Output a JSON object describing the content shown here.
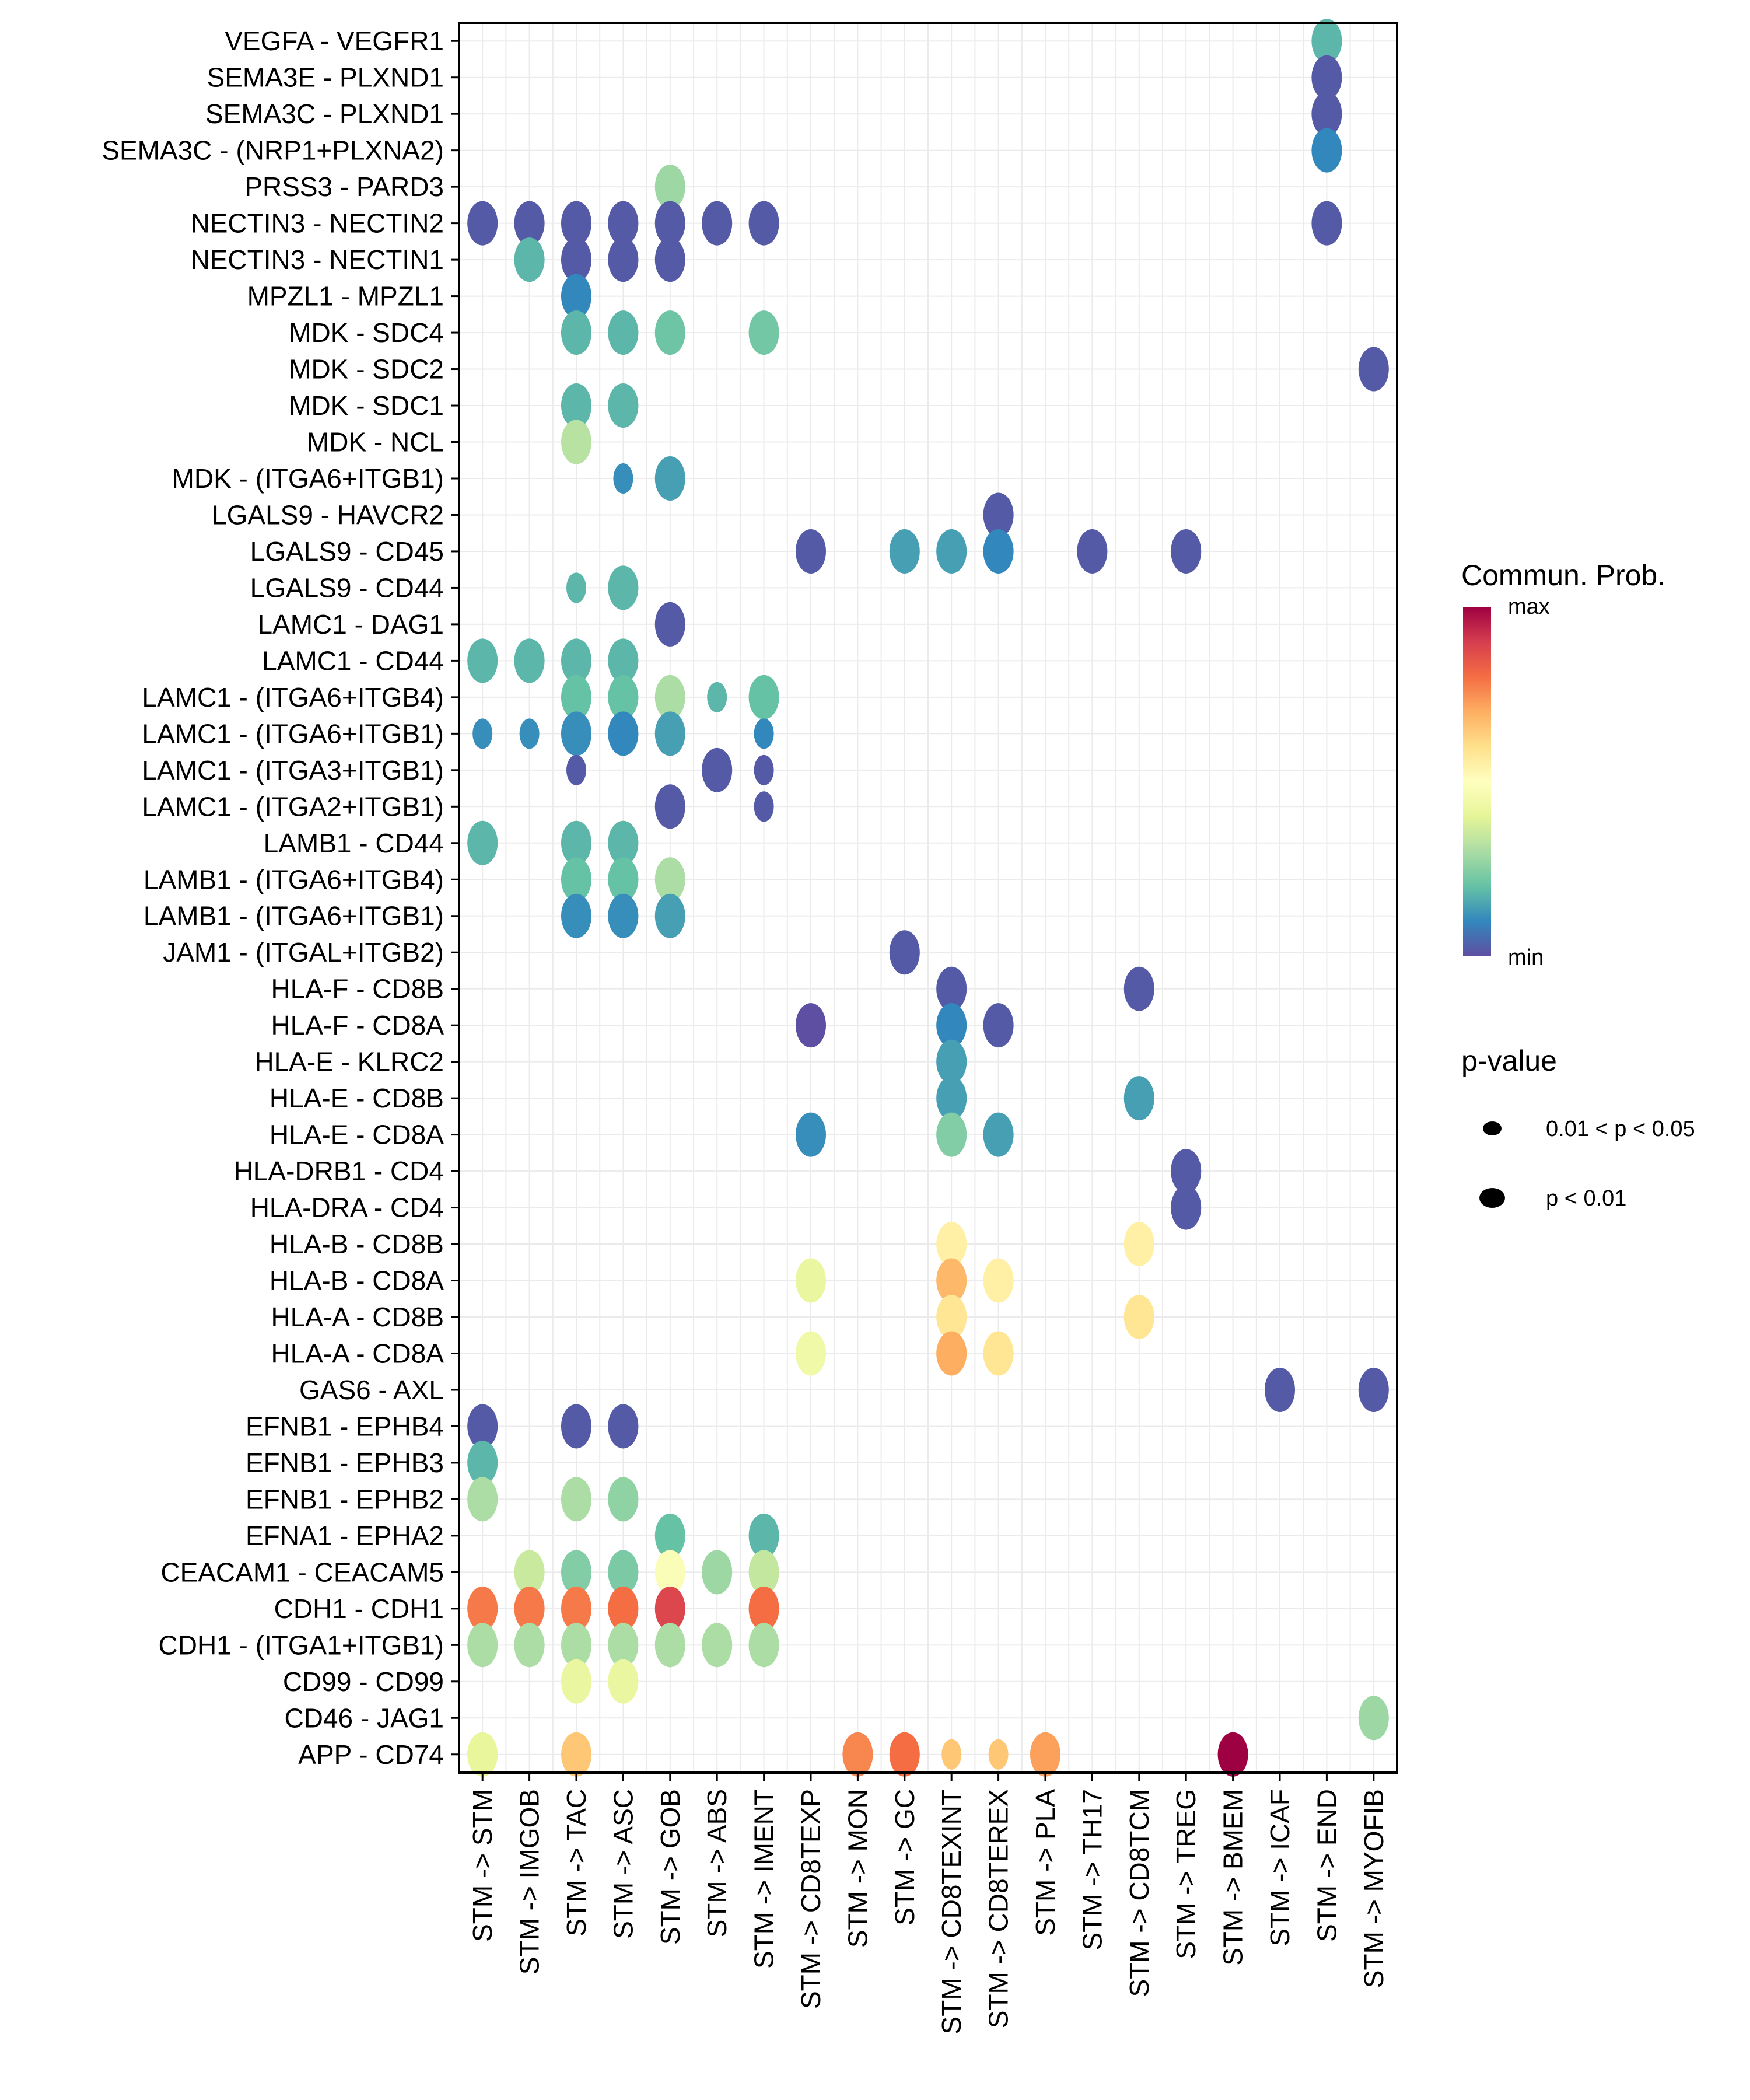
{
  "chart_data": {
    "type": "scatter",
    "subtype": "dot-plot",
    "title": "",
    "xlabel": "",
    "ylabel": "",
    "grid": true,
    "legend_position": "right",
    "x_categories": [
      "STM -> STM",
      "STM -> IMGOB",
      "STM -> TAC",
      "STM -> ASC",
      "STM -> GOB",
      "STM -> ABS",
      "STM -> IMENT",
      "STM -> CD8TEXP",
      "STM -> MON",
      "STM -> GC",
      "STM -> CD8TEXINT",
      "STM -> CD8TEREX",
      "STM -> PLA",
      "STM -> TH17",
      "STM -> CD8TCM",
      "STM -> TREG",
      "STM -> BMEM",
      "STM -> ICAF",
      "STM -> END",
      "STM -> MYOFIB"
    ],
    "y_categories_top_to_bottom": [
      "VEGFA - VEGFR1",
      "SEMA3E - PLXND1",
      "SEMA3C - PLXND1",
      "SEMA3C - (NRP1+PLXNA2)",
      "PRSS3 - PARD3",
      "NECTIN3 - NECTIN2",
      "NECTIN3 - NECTIN1",
      "MPZL1 - MPZL1",
      "MDK - SDC4",
      "MDK - SDC2",
      "MDK - SDC1",
      "MDK - NCL",
      "MDK - (ITGA6+ITGB1)",
      "LGALS9 - HAVCR2",
      "LGALS9 - CD45",
      "LGALS9 - CD44",
      "LAMC1 - DAG1",
      "LAMC1 - CD44",
      "LAMC1 - (ITGA6+ITGB4)",
      "LAMC1 - (ITGA6+ITGB1)",
      "LAMC1 - (ITGA3+ITGB1)",
      "LAMC1 - (ITGA2+ITGB1)",
      "LAMB1 - CD44",
      "LAMB1 - (ITGA6+ITGB4)",
      "LAMB1 - (ITGA6+ITGB1)",
      "JAM1 - (ITGAL+ITGB2)",
      "HLA-F - CD8B",
      "HLA-F - CD8A",
      "HLA-E - KLRC2",
      "HLA-E - CD8B",
      "HLA-E - CD8A",
      "HLA-DRB1 - CD4",
      "HLA-DRA - CD4",
      "HLA-B - CD8B",
      "HLA-B - CD8A",
      "HLA-A - CD8B",
      "HLA-A - CD8A",
      "GAS6 - AXL",
      "EFNB1 - EPHB4",
      "EFNB1 - EPHB3",
      "EFNB1 - EPHB2",
      "EFNA1 - EPHA2",
      "CEACAM1 - CEACAM5",
      "CDH1 - CDH1",
      "CDH1 - (ITGA1+ITGB1)",
      "CD99 - CD99",
      "CD46 - JAG1",
      "APP - CD74"
    ],
    "value_scale": "normalized commun. prob. (0 = min, 1 = max)",
    "points_note": "each point: [row_index, col_index, comm_prob_normalized, pvalue_class]; pvalue_class 'lt0.01' = p < 0.01 (large dot), '0.01-0.05' = 0.01 < p < 0.05 (small dot)",
    "points": [
      [
        0,
        18,
        0.18,
        "lt0.01"
      ],
      [
        1,
        18,
        0.02,
        "lt0.01"
      ],
      [
        2,
        18,
        0.02,
        "lt0.01"
      ],
      [
        3,
        18,
        0.1,
        "lt0.01"
      ],
      [
        4,
        4,
        0.28,
        "lt0.01"
      ],
      [
        5,
        0,
        0.02,
        "lt0.01"
      ],
      [
        5,
        1,
        0.02,
        "lt0.01"
      ],
      [
        5,
        2,
        0.02,
        "lt0.01"
      ],
      [
        5,
        3,
        0.02,
        "lt0.01"
      ],
      [
        5,
        4,
        0.02,
        "lt0.01"
      ],
      [
        5,
        5,
        0.02,
        "lt0.01"
      ],
      [
        5,
        6,
        0.02,
        "lt0.01"
      ],
      [
        5,
        18,
        0.02,
        "lt0.01"
      ],
      [
        6,
        1,
        0.18,
        "lt0.01"
      ],
      [
        6,
        2,
        0.02,
        "lt0.01"
      ],
      [
        6,
        3,
        0.02,
        "lt0.01"
      ],
      [
        6,
        4,
        0.02,
        "lt0.01"
      ],
      [
        7,
        2,
        0.1,
        "lt0.01"
      ],
      [
        8,
        2,
        0.18,
        "lt0.01"
      ],
      [
        8,
        3,
        0.18,
        "lt0.01"
      ],
      [
        8,
        4,
        0.21,
        "lt0.01"
      ],
      [
        8,
        6,
        0.22,
        "lt0.01"
      ],
      [
        9,
        19,
        0.02,
        "lt0.01"
      ],
      [
        10,
        2,
        0.18,
        "lt0.01"
      ],
      [
        10,
        3,
        0.18,
        "lt0.01"
      ],
      [
        11,
        2,
        0.32,
        "lt0.01"
      ],
      [
        12,
        3,
        0.11,
        "0.01-0.05"
      ],
      [
        12,
        4,
        0.14,
        "lt0.01"
      ],
      [
        13,
        11,
        0.02,
        "lt0.01"
      ],
      [
        14,
        7,
        0.02,
        "lt0.01"
      ],
      [
        14,
        9,
        0.14,
        "lt0.01"
      ],
      [
        14,
        10,
        0.14,
        "lt0.01"
      ],
      [
        14,
        11,
        0.1,
        "lt0.01"
      ],
      [
        14,
        13,
        0.02,
        "lt0.01"
      ],
      [
        14,
        15,
        0.02,
        "lt0.01"
      ],
      [
        15,
        2,
        0.18,
        "0.01-0.05"
      ],
      [
        15,
        3,
        0.18,
        "lt0.01"
      ],
      [
        16,
        4,
        0.02,
        "lt0.01"
      ],
      [
        17,
        0,
        0.18,
        "lt0.01"
      ],
      [
        17,
        1,
        0.18,
        "lt0.01"
      ],
      [
        17,
        2,
        0.18,
        "lt0.01"
      ],
      [
        17,
        3,
        0.18,
        "lt0.01"
      ],
      [
        18,
        2,
        0.2,
        "lt0.01"
      ],
      [
        18,
        3,
        0.2,
        "lt0.01"
      ],
      [
        18,
        4,
        0.3,
        "lt0.01"
      ],
      [
        18,
        5,
        0.18,
        "0.01-0.05"
      ],
      [
        18,
        6,
        0.2,
        "lt0.01"
      ],
      [
        19,
        0,
        0.11,
        "0.01-0.05"
      ],
      [
        19,
        1,
        0.11,
        "0.01-0.05"
      ],
      [
        19,
        2,
        0.11,
        "lt0.01"
      ],
      [
        19,
        3,
        0.1,
        "lt0.01"
      ],
      [
        19,
        4,
        0.14,
        "lt0.01"
      ],
      [
        19,
        6,
        0.1,
        "0.01-0.05"
      ],
      [
        20,
        2,
        0.02,
        "0.01-0.05"
      ],
      [
        20,
        5,
        0.02,
        "lt0.01"
      ],
      [
        20,
        6,
        0.02,
        "0.01-0.05"
      ],
      [
        21,
        4,
        0.02,
        "lt0.01"
      ],
      [
        21,
        6,
        0.02,
        "0.01-0.05"
      ],
      [
        22,
        0,
        0.18,
        "lt0.01"
      ],
      [
        22,
        2,
        0.18,
        "lt0.01"
      ],
      [
        22,
        3,
        0.18,
        "lt0.01"
      ],
      [
        23,
        2,
        0.2,
        "lt0.01"
      ],
      [
        23,
        3,
        0.2,
        "lt0.01"
      ],
      [
        23,
        4,
        0.3,
        "lt0.01"
      ],
      [
        24,
        2,
        0.11,
        "lt0.01"
      ],
      [
        24,
        3,
        0.11,
        "lt0.01"
      ],
      [
        24,
        4,
        0.14,
        "lt0.01"
      ],
      [
        25,
        9,
        0.02,
        "lt0.01"
      ],
      [
        26,
        10,
        0.02,
        "lt0.01"
      ],
      [
        26,
        14,
        0.02,
        "lt0.01"
      ],
      [
        27,
        7,
        0.0,
        "lt0.01"
      ],
      [
        27,
        10,
        0.1,
        "lt0.01"
      ],
      [
        27,
        11,
        0.02,
        "lt0.01"
      ],
      [
        28,
        10,
        0.14,
        "lt0.01"
      ],
      [
        29,
        10,
        0.14,
        "lt0.01"
      ],
      [
        29,
        14,
        0.14,
        "lt0.01"
      ],
      [
        30,
        7,
        0.11,
        "lt0.01"
      ],
      [
        30,
        10,
        0.24,
        "lt0.01"
      ],
      [
        30,
        11,
        0.14,
        "lt0.01"
      ],
      [
        31,
        15,
        0.02,
        "lt0.01"
      ],
      [
        32,
        15,
        0.02,
        "lt0.01"
      ],
      [
        33,
        10,
        0.55,
        "lt0.01"
      ],
      [
        33,
        14,
        0.55,
        "lt0.01"
      ],
      [
        34,
        7,
        0.42,
        "lt0.01"
      ],
      [
        34,
        10,
        0.68,
        "lt0.01"
      ],
      [
        34,
        11,
        0.55,
        "lt0.01"
      ],
      [
        35,
        10,
        0.58,
        "lt0.01"
      ],
      [
        35,
        14,
        0.58,
        "lt0.01"
      ],
      [
        36,
        7,
        0.44,
        "lt0.01"
      ],
      [
        36,
        10,
        0.7,
        "lt0.01"
      ],
      [
        36,
        11,
        0.58,
        "lt0.01"
      ],
      [
        37,
        17,
        0.02,
        "lt0.01"
      ],
      [
        37,
        19,
        0.02,
        "lt0.01"
      ],
      [
        38,
        0,
        0.02,
        "lt0.01"
      ],
      [
        38,
        2,
        0.02,
        "lt0.01"
      ],
      [
        38,
        3,
        0.02,
        "lt0.01"
      ],
      [
        39,
        0,
        0.18,
        "lt0.01"
      ],
      [
        40,
        0,
        0.3,
        "lt0.01"
      ],
      [
        40,
        2,
        0.3,
        "lt0.01"
      ],
      [
        40,
        3,
        0.26,
        "lt0.01"
      ],
      [
        41,
        4,
        0.2,
        "lt0.01"
      ],
      [
        41,
        6,
        0.18,
        "lt0.01"
      ],
      [
        42,
        1,
        0.35,
        "lt0.01"
      ],
      [
        42,
        2,
        0.24,
        "lt0.01"
      ],
      [
        42,
        3,
        0.23,
        "lt0.01"
      ],
      [
        42,
        4,
        0.48,
        "lt0.01"
      ],
      [
        42,
        5,
        0.28,
        "lt0.01"
      ],
      [
        42,
        6,
        0.34,
        "lt0.01"
      ],
      [
        43,
        0,
        0.78,
        "lt0.01"
      ],
      [
        43,
        1,
        0.78,
        "lt0.01"
      ],
      [
        43,
        2,
        0.78,
        "lt0.01"
      ],
      [
        43,
        3,
        0.8,
        "lt0.01"
      ],
      [
        43,
        4,
        0.88,
        "lt0.01"
      ],
      [
        43,
        6,
        0.8,
        "lt0.01"
      ],
      [
        44,
        0,
        0.3,
        "lt0.01"
      ],
      [
        44,
        1,
        0.3,
        "lt0.01"
      ],
      [
        44,
        2,
        0.3,
        "lt0.01"
      ],
      [
        44,
        3,
        0.3,
        "lt0.01"
      ],
      [
        44,
        4,
        0.3,
        "lt0.01"
      ],
      [
        44,
        5,
        0.3,
        "lt0.01"
      ],
      [
        44,
        6,
        0.3,
        "lt0.01"
      ],
      [
        45,
        2,
        0.42,
        "lt0.01"
      ],
      [
        45,
        3,
        0.42,
        "lt0.01"
      ],
      [
        46,
        19,
        0.28,
        "lt0.01"
      ],
      [
        47,
        0,
        0.41,
        "lt0.01"
      ],
      [
        47,
        2,
        0.65,
        "lt0.01"
      ],
      [
        47,
        8,
        0.76,
        "lt0.01"
      ],
      [
        47,
        9,
        0.8,
        "lt0.01"
      ],
      [
        47,
        10,
        0.65,
        "0.01-0.05"
      ],
      [
        47,
        11,
        0.65,
        "0.01-0.05"
      ],
      [
        47,
        12,
        0.72,
        "lt0.01"
      ],
      [
        47,
        16,
        1.0,
        "lt0.01"
      ]
    ],
    "colorbar": {
      "title": "Commun. Prob.",
      "max_label": "max",
      "min_label": "min",
      "palette": [
        "#5E4FA2",
        "#3288BD",
        "#66C2A5",
        "#ABDDA4",
        "#E6F598",
        "#FFFFBF",
        "#FEE08B",
        "#FDAE61",
        "#F46D43",
        "#D53E4F",
        "#9E0142"
      ]
    },
    "size_legend": {
      "title": "p-value",
      "entries": [
        {
          "label": "0.01 < p < 0.05",
          "class": "0.01-0.05"
        },
        {
          "label": "p < 0.01",
          "class": "lt0.01"
        }
      ]
    }
  }
}
